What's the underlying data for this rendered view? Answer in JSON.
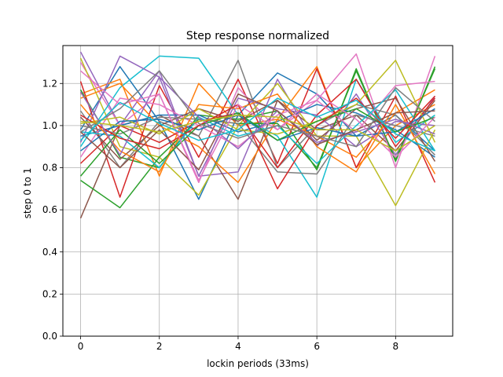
{
  "chart_data": {
    "type": "line",
    "title": "Step response normalized",
    "xlabel": "lockin periods (33ms)",
    "ylabel": "step 0 to 1",
    "xlim": [
      -0.45,
      9.45
    ],
    "ylim": [
      0.0,
      1.38
    ],
    "xticks": [
      0,
      2,
      4,
      6,
      8
    ],
    "yticks": [
      0.0,
      0.2,
      0.4,
      0.6,
      0.8,
      1.0,
      1.2
    ],
    "grid": true,
    "x": [
      0,
      1,
      2,
      3,
      4,
      5,
      6,
      7,
      8,
      9
    ],
    "colors": [
      "#1f77b4",
      "#ff7f0e",
      "#2ca02c",
      "#d62728",
      "#9467bd",
      "#8c564b",
      "#e377c2",
      "#7f7f7f",
      "#bcbd22",
      "#17becf"
    ],
    "series": [
      {
        "values": [
          0.98,
          1.28,
          1.02,
          0.65,
          1.05,
          1.25,
          1.15,
          0.95,
          1.05,
          0.88
        ]
      },
      {
        "values": [
          1.15,
          1.22,
          0.76,
          1.2,
          1.0,
          1.03,
          1.28,
          0.8,
          1.0,
          1.1
        ]
      },
      {
        "values": [
          1.17,
          0.85,
          0.8,
          1.05,
          1.03,
          1.07,
          0.79,
          1.27,
          0.83,
          1.28
        ]
      },
      {
        "values": [
          1.21,
          0.66,
          1.19,
          0.85,
          1.22,
          0.82,
          1.27,
          0.8,
          1.14,
          0.73
        ]
      },
      {
        "values": [
          1.35,
          1.0,
          1.26,
          0.76,
          0.78,
          1.22,
          0.9,
          1.15,
          0.86,
          1.14
        ]
      },
      {
        "values": [
          0.56,
          1.0,
          1.05,
          0.95,
          0.65,
          1.12,
          0.98,
          1.05,
          0.88,
          1.12
        ]
      },
      {
        "values": [
          1.3,
          1.0,
          1.15,
          0.73,
          1.18,
          0.98,
          1.12,
          1.34,
          0.8,
          1.33
        ]
      },
      {
        "values": [
          1.07,
          0.8,
          1.02,
          0.95,
          1.31,
          0.8,
          1.0,
          1.1,
          1.05,
          0.86
        ]
      },
      {
        "values": [
          1.32,
          0.9,
          0.85,
          0.67,
          1.0,
          1.2,
          0.95,
          0.95,
          0.62,
          0.98
        ]
      },
      {
        "values": [
          0.9,
          1.18,
          1.33,
          1.32,
          1.05,
          0.95,
          0.66,
          1.22,
          0.92,
          1.05
        ]
      },
      {
        "values": [
          0.95,
          1.0,
          1.05,
          1.05,
          0.97,
          1.02,
          1.1,
          1.06,
          0.98,
          0.85
        ]
      },
      {
        "values": [
          1.13,
          1.2,
          1.0,
          0.9,
          0.73,
          1.03,
          0.95,
          0.85,
          1.06,
          1.17
        ]
      },
      {
        "values": [
          0.74,
          0.61,
          0.85,
          1.03,
          1.01,
          1.01,
          0.8,
          1.26,
          0.84,
          1.27
        ]
      },
      {
        "values": [
          0.82,
          1.0,
          0.92,
          1.02,
          1.06,
          0.8,
          1.05,
          1.22,
          0.9,
          1.13
        ]
      },
      {
        "values": [
          0.92,
          1.33,
          1.23,
          0.76,
          1.13,
          1.08,
          1.05,
          0.9,
          1.02,
          1.0
        ]
      },
      {
        "values": [
          1.04,
          0.84,
          1.0,
          1.08,
          1.02,
          1.12,
          0.93,
          1.08,
          1.13,
          0.83
        ]
      },
      {
        "values": [
          0.85,
          1.13,
          1.1,
          1.0,
          0.9,
          1.05,
          1.12,
          0.97,
          1.19,
          1.21
        ]
      },
      {
        "values": [
          1.0,
          0.96,
          1.04,
          1.03,
          1.01,
          0.78,
          0.77,
          1.05,
          1.0,
          0.95
        ]
      },
      {
        "values": [
          1.01,
          1.04,
          0.96,
          1.08,
          0.98,
          0.96,
          1.02,
          1.1,
          1.31,
          0.92
        ]
      },
      {
        "values": [
          0.97,
          0.95,
          0.8,
          1.04,
          0.95,
          1.0,
          0.82,
          1.0,
          1.17,
          0.88
        ]
      },
      {
        "values": [
          0.88,
          1.02,
          1.03,
          0.98,
          1.05,
          0.93,
          0.99,
          0.95,
          0.97,
          1.08
        ]
      },
      {
        "values": [
          1.1,
          0.88,
          0.78,
          1.1,
          1.08,
          1.15,
          0.9,
          0.78,
          1.1,
          0.77
        ]
      },
      {
        "values": [
          0.76,
          0.98,
          0.82,
          1.0,
          1.06,
          0.93,
          1.02,
          1.08,
          0.97,
          1.04
        ]
      },
      {
        "values": [
          1.05,
          0.94,
          0.89,
          1.0,
          1.1,
          0.7,
          1.0,
          1.13,
          0.94,
          1.14
        ]
      },
      {
        "values": [
          1.16,
          0.86,
          1.23,
          1.04,
          0.89,
          1.07,
          0.92,
          0.97,
          1.03,
          0.96
        ]
      },
      {
        "values": [
          0.97,
          0.8,
          0.98,
          0.79,
          1.15,
          1.07,
          0.91,
          0.98,
          1.06,
          1.07
        ]
      },
      {
        "values": [
          1.26,
          1.1,
          1.15,
          0.74,
          1.1,
          0.98,
          1.15,
          1.03,
          0.85,
          1.04
        ]
      },
      {
        "values": [
          0.97,
          1.08,
          1.26,
          1.01,
          0.94,
          1.0,
          0.95,
          0.9,
          1.18,
          1.02
        ]
      },
      {
        "values": [
          1.02,
          1.0,
          0.97,
          1.02,
          1.05,
          1.04,
          0.98,
          0.98,
          0.88,
          1.0
        ]
      },
      {
        "values": [
          0.93,
          1.11,
          1.01,
          0.93,
          0.98,
          1.13,
          1.04,
          1.12,
          0.96,
          0.88
        ]
      }
    ]
  }
}
